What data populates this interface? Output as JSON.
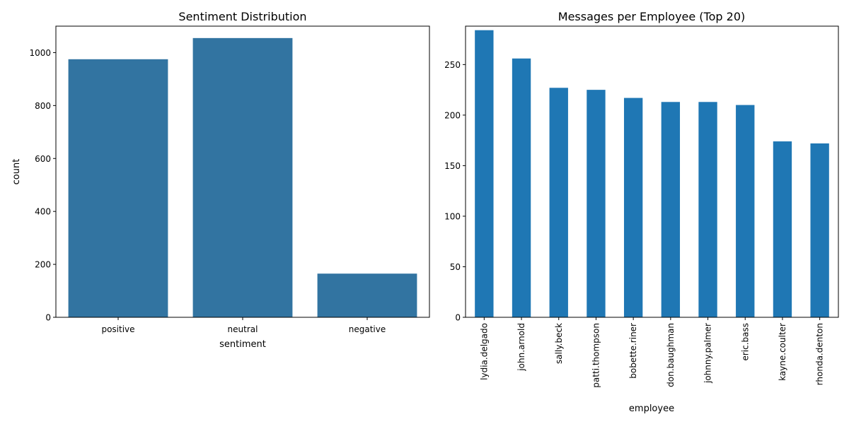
{
  "chart_data": [
    {
      "type": "bar",
      "title": "Sentiment Distribution",
      "xlabel": "sentiment",
      "ylabel": "count",
      "categories": [
        "positive",
        "neutral",
        "negative"
      ],
      "values": [
        975,
        1055,
        165
      ],
      "ylim": [
        0,
        1100
      ],
      "yticks": [
        0,
        200,
        400,
        600,
        800,
        1000
      ],
      "bar_color": "#3274a1",
      "grid": false,
      "legend": "none"
    },
    {
      "type": "bar",
      "title": "Messages per Employee (Top 20)",
      "xlabel": "employee",
      "ylabel": "",
      "categories": [
        "lydia.delgado",
        "john.arnold",
        "sally.beck",
        "patti.thompson",
        "bobette.riner",
        "don.baughman",
        "johnny.palmer",
        "eric.bass",
        "kayne.coulter",
        "rhonda.denton"
      ],
      "values": [
        284,
        256,
        227,
        225,
        217,
        213,
        213,
        210,
        174,
        172
      ],
      "ylim": [
        0,
        288
      ],
      "yticks": [
        0,
        50,
        100,
        150,
        200,
        250
      ],
      "bar_color": "#1f77b4",
      "grid": false,
      "legend": "none"
    }
  ]
}
